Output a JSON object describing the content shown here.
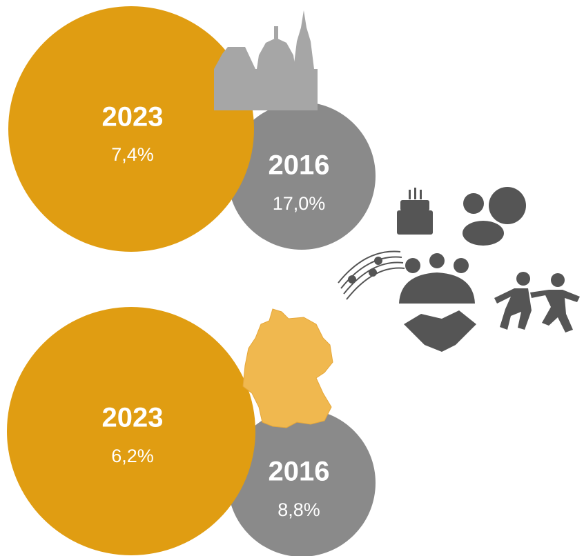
{
  "groups": [
    {
      "current_year": "2023",
      "current_value": "7,4%",
      "previous_year": "2016",
      "previous_value": "17,0%"
    },
    {
      "current_year": "2023",
      "current_value": "6,2%",
      "previous_year": "2016",
      "previous_value": "8,8%"
    }
  ]
}
